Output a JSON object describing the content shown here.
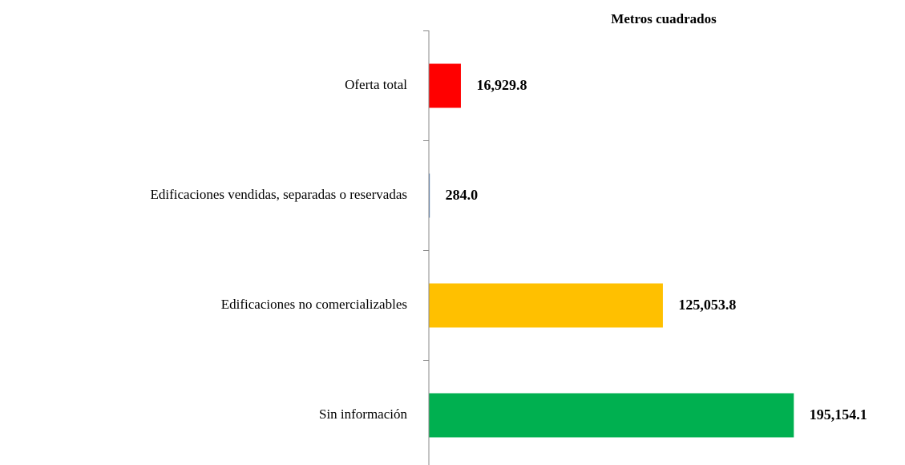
{
  "chart_data": {
    "type": "barh",
    "title": "Metros cuadrados",
    "categories": [
      "Oferta total",
      "Edificaciones vendidas, separadas  o reservadas",
      "Edificaciones no comercializables",
      "Sin información"
    ],
    "values": [
      16929.8,
      284.0,
      125053.8,
      195154.1
    ],
    "value_labels": [
      "16,929.8",
      "284.0",
      "125,053.8",
      "195,154.1"
    ],
    "colors": [
      "#ff0000",
      "#4f81bd",
      "#ffc000",
      "#00b050"
    ],
    "xlim": [
      0,
      230000
    ]
  }
}
